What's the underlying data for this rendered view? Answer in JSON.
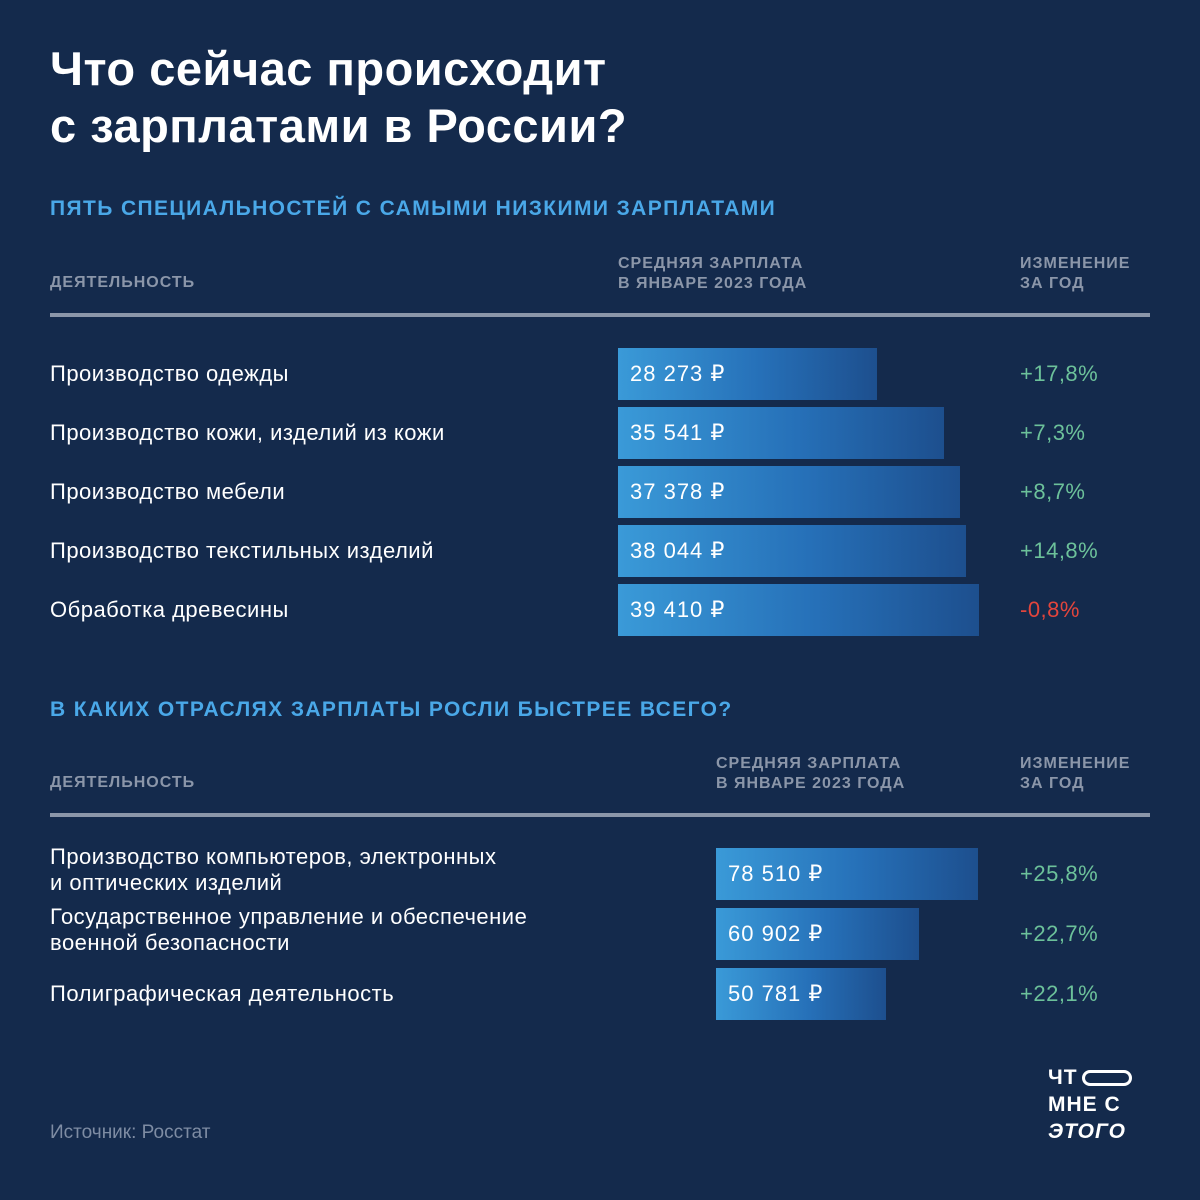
{
  "title": {
    "line1": "Что сейчас происходит",
    "line2": "с зарплатами в России?"
  },
  "colors": {
    "background": "#142a4c",
    "accent": "#4aa8e8",
    "positive": "#6cc19a",
    "negative": "#e2453c",
    "muted": "#8b96a9"
  },
  "chart_data": [
    {
      "type": "bar",
      "orientation": "horizontal",
      "title": "Пять специальностей с самыми низкими зарплатами",
      "columns": {
        "activity": "Деятельность",
        "salary_line1": "Средняя зарплата",
        "salary_line2": "в январе 2023 года",
        "change_line1": "Изменение",
        "change_line2": "за год"
      },
      "categories": [
        "Производство одежды",
        "Производство кожи, изделий из кожи",
        "Производство мебели",
        "Производство текстильных изделий",
        "Обработка древесины"
      ],
      "values": [
        28273,
        35541,
        37378,
        38044,
        39410
      ],
      "value_labels": [
        "28 273 ₽",
        "35 541 ₽",
        "37 378 ₽",
        "38 044 ₽",
        "39 410 ₽"
      ],
      "changes": [
        "+17,8%",
        "+7,3%",
        "+8,7%",
        "+14,8%",
        "-0,8%"
      ],
      "change_sign": [
        "pos",
        "pos",
        "pos",
        "pos",
        "neg"
      ],
      "unit": "₽"
    },
    {
      "type": "bar",
      "orientation": "horizontal",
      "title": "В каких отраслях зарплаты росли быстрее всего?",
      "columns": {
        "activity": "Деятельность",
        "salary_line1": "Средняя зарплата",
        "salary_line2": "в январе 2023 года",
        "change_line1": "Изменение",
        "change_line2": "за год"
      },
      "categories": [
        [
          "Производство компьютеров, электронных",
          "и оптических изделий"
        ],
        [
          "Государственное управление и обеспечение",
          "военной безопасности"
        ],
        [
          "Полиграфическая деятельность"
        ]
      ],
      "values": [
        78510,
        60902,
        50781
      ],
      "value_labels": [
        "78 510 ₽",
        "60 902 ₽",
        "50 781 ₽"
      ],
      "changes": [
        "+25,8%",
        "+22,7%",
        "+22,1%"
      ],
      "change_sign": [
        "pos",
        "pos",
        "pos"
      ],
      "unit": "₽"
    }
  ],
  "source": "Источник: Росстат",
  "logo": {
    "line1": "ЧТ",
    "line2": "МНЕ С",
    "line3": "ЭТОГО"
  }
}
